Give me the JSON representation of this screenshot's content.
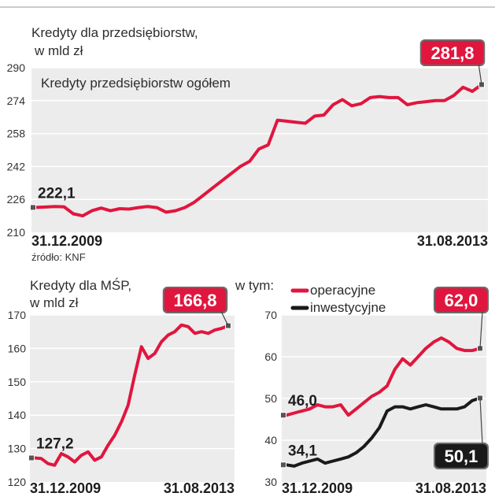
{
  "source": "źródło: KNF",
  "colors": {
    "red": "#e0163e",
    "black": "#1a1a1a",
    "panel": "#ececec",
    "grid": "#ffffff",
    "badge_border": "#6a6a6a"
  },
  "chart_data": [
    {
      "type": "line",
      "title": "Kredyty dla przedsiębiorstw,",
      "subtitle": "w mld zł",
      "inner_label": "Kredyty przedsiębiorstw ogółem",
      "x_start_label": "31.12.2009",
      "x_end_label": "31.08.2013",
      "yticks": [
        210,
        226,
        242,
        258,
        274,
        290
      ],
      "ylim": [
        210,
        290
      ],
      "series": [
        {
          "color": "#e0163e",
          "start_label": "222,1",
          "end_label": "281,8",
          "values": [
            222.1,
            222.3,
            222.5,
            222.4,
            219.0,
            218.0,
            220.5,
            221.8,
            220.5,
            221.5,
            221.3,
            222.0,
            222.5,
            222.0,
            219.8,
            220.5,
            222.0,
            224.5,
            228.0,
            231.5,
            235.0,
            238.5,
            242.0,
            244.5,
            250.5,
            252.5,
            264.5,
            264.0,
            263.5,
            263.0,
            266.5,
            267.0,
            272.0,
            274.5,
            271.5,
            272.5,
            275.5,
            276.0,
            275.5,
            275.5,
            272.0,
            273.0,
            273.5,
            274.0,
            274.0,
            276.5,
            280.5,
            278.5,
            281.8
          ]
        }
      ]
    },
    {
      "type": "line",
      "title": "Kredyty dla MŚP,",
      "subtitle": "w mld zł",
      "x_start_label": "31.12.2009",
      "x_end_label": "31.08.2013",
      "yticks": [
        120,
        130,
        140,
        150,
        160,
        170
      ],
      "ylim": [
        120,
        170
      ],
      "series": [
        {
          "color": "#e0163e",
          "start_label": "127,2",
          "end_label": "166,8",
          "values": [
            127.2,
            127.0,
            125.5,
            125.0,
            128.5,
            127.5,
            126.0,
            128.0,
            129.0,
            126.5,
            127.5,
            131.0,
            134.0,
            138.0,
            143.0,
            152.0,
            160.5,
            157.0,
            158.5,
            162.0,
            164.0,
            165.0,
            167.0,
            166.5,
            164.5,
            165.0,
            164.5,
            165.5,
            166.0,
            166.8
          ]
        }
      ]
    },
    {
      "type": "line",
      "title": "w tym:",
      "x_start_label": "31.12.2009",
      "x_end_label": "31.08.2013",
      "yticks": [
        30,
        40,
        50,
        60,
        70
      ],
      "ylim": [
        30,
        70
      ],
      "legend": "top-right",
      "series": [
        {
          "name": "operacyjne",
          "color": "#e0163e",
          "start_label": "46,0",
          "end_label": "62,0",
          "values": [
            46.0,
            46.5,
            47.0,
            47.5,
            48.5,
            48.0,
            48.0,
            48.5,
            46.0,
            47.5,
            49.0,
            50.5,
            51.5,
            53.0,
            57.0,
            59.5,
            58.0,
            60.0,
            62.0,
            63.5,
            64.5,
            63.5,
            62.0,
            61.5,
            61.5,
            62.0
          ]
        },
        {
          "name": "inwestycyjne",
          "color": "#1a1a1a",
          "start_label": "34,1",
          "end_label": "50,1",
          "values": [
            34.1,
            33.8,
            34.5,
            35.0,
            35.5,
            34.5,
            35.0,
            35.5,
            36.0,
            37.0,
            38.5,
            40.5,
            43.0,
            47.0,
            48.0,
            48.0,
            47.5,
            48.0,
            48.5,
            48.0,
            47.5,
            47.5,
            47.5,
            48.0,
            49.5,
            50.1
          ]
        }
      ]
    }
  ]
}
